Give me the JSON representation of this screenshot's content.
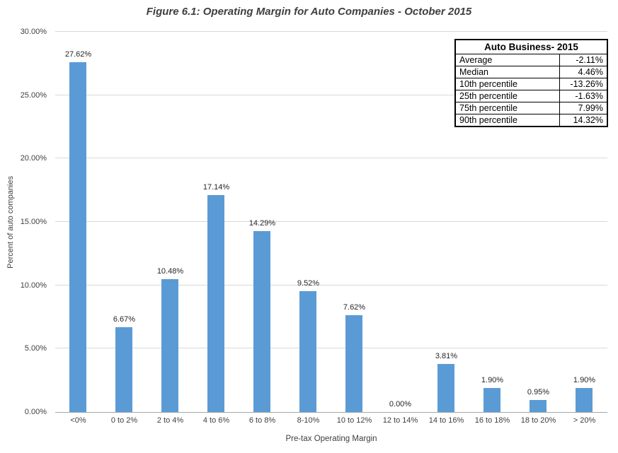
{
  "chart_data": {
    "type": "bar",
    "title": "Figure 6.1: Operating Margin  for Auto Companies - October 2015",
    "xlabel": "Pre-tax Operating Margin",
    "ylabel": "Percent of auto companies",
    "categories": [
      "<0%",
      "0 to 2%",
      "2 to 4%",
      "4 to 6%",
      "6 to 8%",
      "8-10%",
      "10 to 12%",
      "12 to 14%",
      "14 to 16%",
      "16 to 18%",
      "18 to 20%",
      "> 20%"
    ],
    "values": [
      27.62,
      6.67,
      10.48,
      17.14,
      14.29,
      9.52,
      7.62,
      0.0,
      3.81,
      1.9,
      0.95,
      1.9
    ],
    "value_labels": [
      "27.62%",
      "6.67%",
      "10.48%",
      "17.14%",
      "14.29%",
      "9.52%",
      "7.62%",
      "0.00%",
      "3.81%",
      "1.90%",
      "0.95%",
      "1.90%"
    ],
    "ylim": [
      0,
      30
    ],
    "ytick_step": 5,
    "ytick_labels": [
      "0.00%",
      "5.00%",
      "10.00%",
      "15.00%",
      "20.00%",
      "25.00%",
      "30.00%"
    ],
    "grid": true,
    "legend": "none",
    "bar_color": "#5b9bd5"
  },
  "stats_table": {
    "header": "Auto Business- 2015",
    "rows": [
      {
        "label": "Average",
        "value": "-2.11%"
      },
      {
        "label": "Median",
        "value": "4.46%"
      },
      {
        "label": "10th percentile",
        "value": "-13.26%"
      },
      {
        "label": "25th percentile",
        "value": "-1.63%"
      },
      {
        "label": "75th percentile",
        "value": "7.99%"
      },
      {
        "label": "90th percentile",
        "value": "14.32%"
      }
    ]
  }
}
